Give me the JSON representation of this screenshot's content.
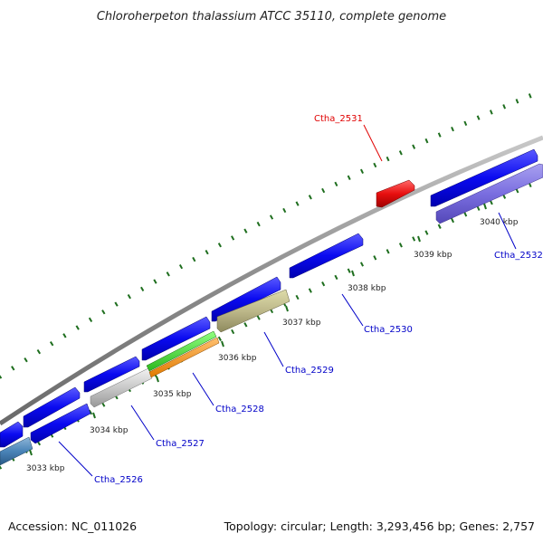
{
  "title": "Chloroherpeton thalassium ATCC 35110, complete genome",
  "footer": {
    "accession": "Accession: NC_011026",
    "summary": "Topology: circular; Length: 3,293,456 bp; Genes: 2,757"
  },
  "colors": {
    "backbone": "#8c8c8c",
    "gc_tick": "#1e6e1e",
    "label_default": "#0000c8",
    "label_highlight": "#e00000",
    "forward_gene": "#0a0af0",
    "highlight_gene": "#e01010"
  },
  "kbp_ticks": [
    {
      "label": "3033 kbp"
    },
    {
      "label": "3034 kbp"
    },
    {
      "label": "3035 kbp"
    },
    {
      "label": "3036 kbp"
    },
    {
      "label": "3037 kbp"
    },
    {
      "label": "3038 kbp"
    },
    {
      "label": "3039 kbp"
    },
    {
      "label": "3040 kbp"
    }
  ],
  "gene_labels": [
    {
      "name": "Ctha_2526",
      "highlight": false
    },
    {
      "name": "Ctha_2527",
      "highlight": false
    },
    {
      "name": "Ctha_2528",
      "highlight": false
    },
    {
      "name": "Ctha_2529",
      "highlight": false
    },
    {
      "name": "Ctha_2530",
      "highlight": false
    },
    {
      "name": "Ctha_2531",
      "highlight": true
    },
    {
      "name": "Ctha_2532",
      "highlight": false
    }
  ]
}
